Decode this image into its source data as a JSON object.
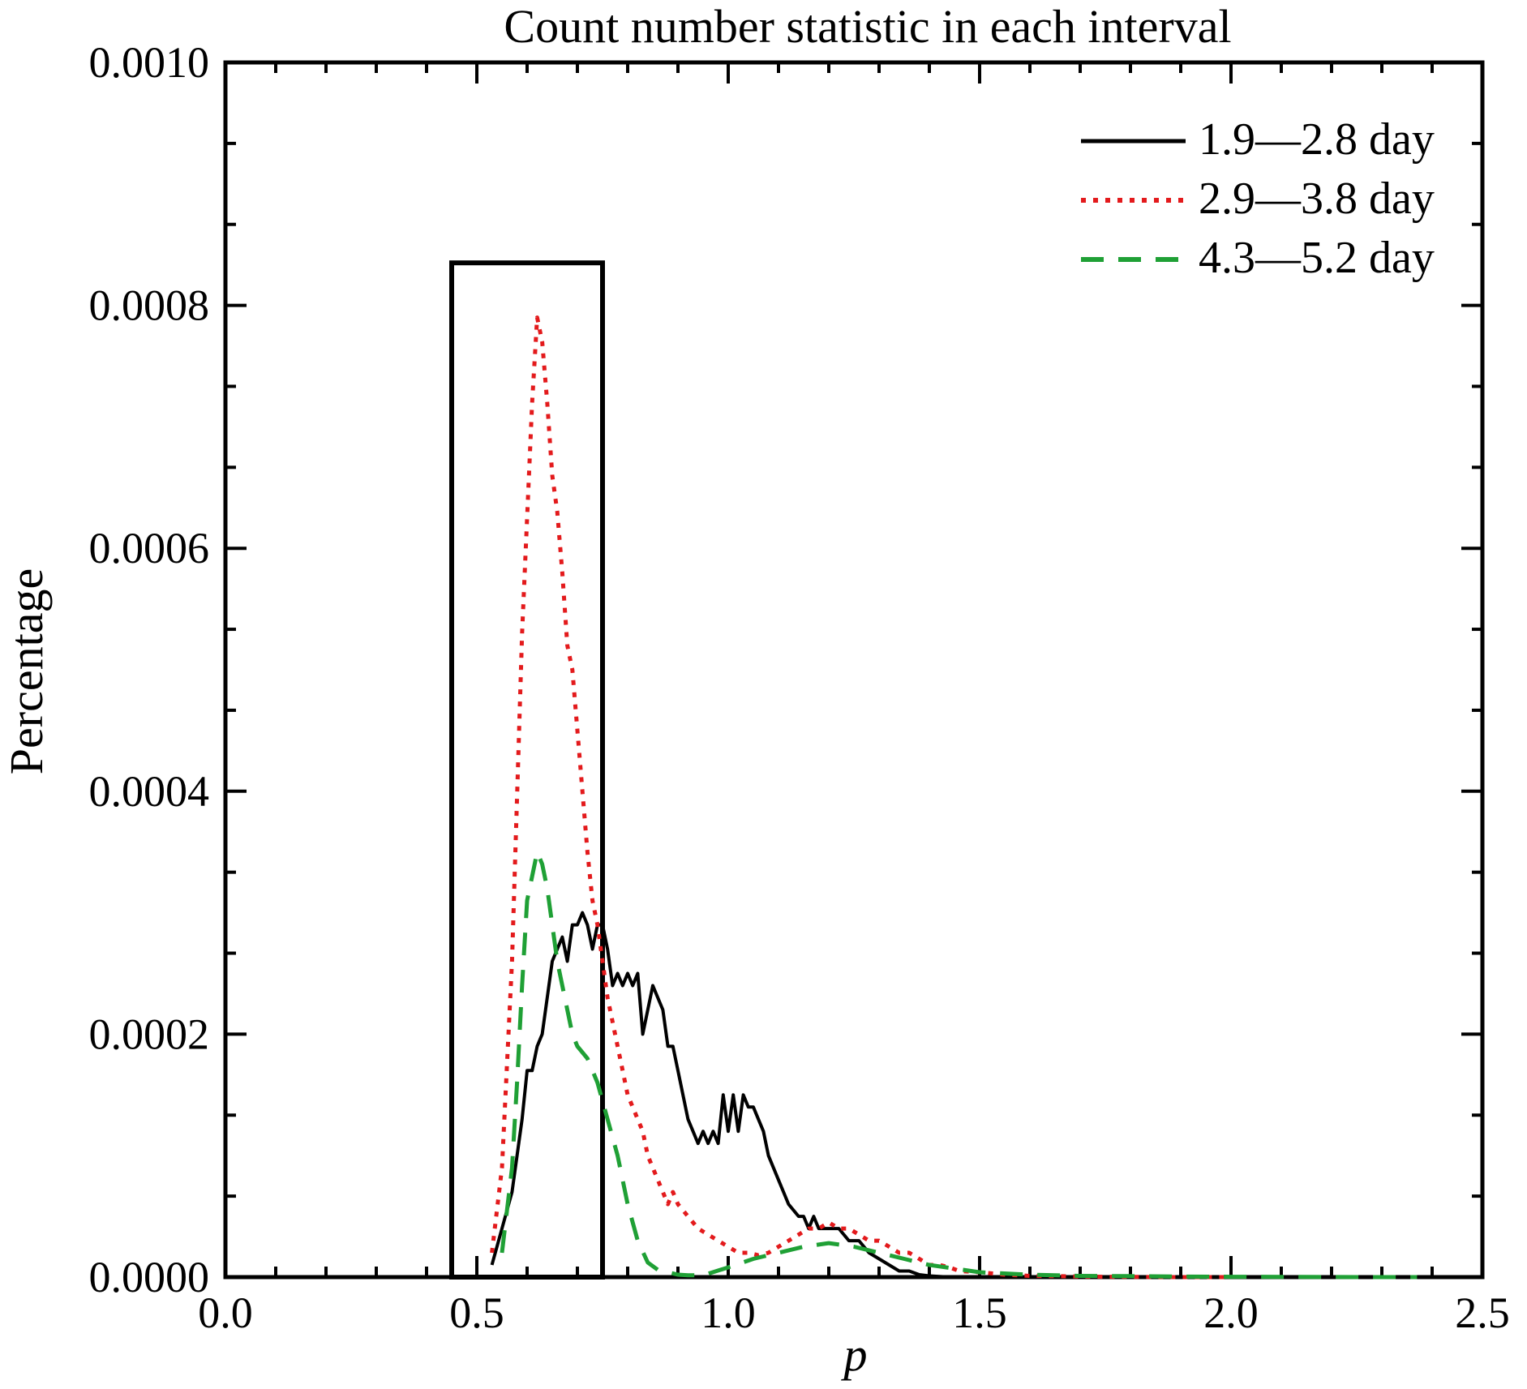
{
  "chart_data": {
    "type": "line",
    "title": "Count number statistic in each interval",
    "xlabel": "p",
    "ylabel": "Percentage",
    "xlim": [
      0.0,
      2.5
    ],
    "ylim": [
      0.0,
      0.001
    ],
    "x_ticks": [
      "0.0",
      "0.5",
      "1.0",
      "1.5",
      "2.0",
      "2.5"
    ],
    "y_ticks": [
      "0.0000",
      "0.0002",
      "0.0004",
      "0.0006",
      "0.0008",
      "0.0010"
    ],
    "grid": false,
    "legend_position": "top-right",
    "highlight_box": {
      "x_range": [
        0.45,
        0.75
      ],
      "y_top": 0.000835
    },
    "series": [
      {
        "name": "1.9—2.8 day",
        "color": "#000000",
        "style": "solid",
        "x": [
          0.53,
          0.55,
          0.57,
          0.58,
          0.59,
          0.6,
          0.61,
          0.62,
          0.63,
          0.64,
          0.65,
          0.66,
          0.67,
          0.68,
          0.69,
          0.7,
          0.71,
          0.72,
          0.73,
          0.74,
          0.75,
          0.76,
          0.77,
          0.78,
          0.79,
          0.8,
          0.81,
          0.82,
          0.83,
          0.84,
          0.85,
          0.86,
          0.87,
          0.88,
          0.89,
          0.9,
          0.91,
          0.92,
          0.93,
          0.94,
          0.95,
          0.96,
          0.97,
          0.98,
          0.99,
          1.0,
          1.01,
          1.02,
          1.03,
          1.04,
          1.05,
          1.06,
          1.07,
          1.08,
          1.09,
          1.1,
          1.11,
          1.12,
          1.13,
          1.14,
          1.15,
          1.16,
          1.17,
          1.18,
          1.19,
          1.2,
          1.22,
          1.24,
          1.26,
          1.28,
          1.3,
          1.32,
          1.34,
          1.36,
          1.38,
          1.4,
          1.42,
          1.44,
          1.46
        ],
        "values": [
          1e-05,
          4e-05,
          7e-05,
          0.0001,
          0.00013,
          0.00017,
          0.00017,
          0.00019,
          0.0002,
          0.00023,
          0.00026,
          0.00027,
          0.00028,
          0.00026,
          0.00029,
          0.00029,
          0.0003,
          0.00029,
          0.00027,
          0.00029,
          0.00029,
          0.00027,
          0.00024,
          0.00025,
          0.00024,
          0.00025,
          0.00024,
          0.00025,
          0.0002,
          0.00022,
          0.00024,
          0.00023,
          0.00022,
          0.00019,
          0.00019,
          0.00017,
          0.00015,
          0.00013,
          0.00012,
          0.00011,
          0.00012,
          0.00011,
          0.00012,
          0.00011,
          0.00015,
          0.00012,
          0.00015,
          0.00012,
          0.00015,
          0.00014,
          0.00014,
          0.00013,
          0.00012,
          0.0001,
          9e-05,
          8e-05,
          7e-05,
          6e-05,
          5.5e-05,
          5e-05,
          5e-05,
          4e-05,
          5e-05,
          4e-05,
          4e-05,
          4e-05,
          4e-05,
          3e-05,
          3e-05,
          2e-05,
          1.5e-05,
          1e-05,
          5e-06,
          5e-06,
          2e-06,
          1e-06,
          5e-07,
          0.0,
          0.0
        ]
      },
      {
        "name": "2.9—3.8 day",
        "color": "#e31a1c",
        "style": "dotted",
        "x": [
          0.53,
          0.55,
          0.57,
          0.59,
          0.61,
          0.62,
          0.63,
          0.64,
          0.65,
          0.66,
          0.67,
          0.68,
          0.69,
          0.7,
          0.71,
          0.72,
          0.73,
          0.74,
          0.75,
          0.76,
          0.77,
          0.78,
          0.79,
          0.8,
          0.81,
          0.82,
          0.83,
          0.84,
          0.85,
          0.86,
          0.87,
          0.88,
          0.89,
          0.9,
          0.92,
          0.94,
          0.96,
          0.98,
          1.0,
          1.02,
          1.04,
          1.06,
          1.08,
          1.1,
          1.12,
          1.14,
          1.16,
          1.18,
          1.2,
          1.22,
          1.24,
          1.26,
          1.28,
          1.3,
          1.32,
          1.34,
          1.36,
          1.38,
          1.4,
          1.42,
          1.44,
          1.46,
          1.5,
          1.55,
          1.6,
          1.65,
          1.7,
          1.75,
          1.8,
          1.85,
          1.9,
          1.95,
          2.0
        ],
        "values": [
          2e-05,
          9e-05,
          0.00026,
          0.00053,
          0.00072,
          0.00079,
          0.00077,
          0.00072,
          0.00066,
          0.00063,
          0.00058,
          0.00052,
          0.0005,
          0.00045,
          0.0004,
          0.00035,
          0.00031,
          0.00029,
          0.00026,
          0.00023,
          0.00021,
          0.00019,
          0.00017,
          0.00015,
          0.00014,
          0.00013,
          0.00012,
          0.0001,
          9e-05,
          8e-05,
          7e-05,
          6e-05,
          7e-05,
          6e-05,
          5e-05,
          4e-05,
          3.5e-05,
          3e-05,
          2.5e-05,
          2e-05,
          2e-05,
          1.8e-05,
          2e-05,
          2.5e-05,
          3e-05,
          3.5e-05,
          4e-05,
          4e-05,
          4.5e-05,
          4e-05,
          4e-05,
          3.5e-05,
          3e-05,
          3e-05,
          2.5e-05,
          2e-05,
          2e-05,
          1.5e-05,
          1e-05,
          1e-05,
          8e-06,
          5e-06,
          4e-06,
          2e-06,
          1e-06,
          8e-07,
          5e-07,
          3e-07,
          2e-07,
          1e-07,
          0.0,
          0.0,
          0.0
        ]
      },
      {
        "name": "4.3—5.2 day",
        "color": "#1fa035",
        "style": "dashed",
        "x": [
          0.55,
          0.57,
          0.58,
          0.59,
          0.6,
          0.61,
          0.62,
          0.63,
          0.64,
          0.65,
          0.66,
          0.67,
          0.68,
          0.69,
          0.7,
          0.72,
          0.74,
          0.76,
          0.78,
          0.8,
          0.82,
          0.84,
          0.86,
          0.88,
          0.9,
          0.92,
          0.95,
          1.0,
          1.05,
          1.1,
          1.15,
          1.2,
          1.25,
          1.3,
          1.35,
          1.4,
          1.45,
          1.5,
          1.6,
          1.7,
          1.8,
          1.9,
          2.0,
          2.1,
          2.2,
          2.3,
          2.37
        ],
        "values": [
          2e-05,
          9e-05,
          0.00016,
          0.00024,
          0.00031,
          0.00033,
          0.00035,
          0.00034,
          0.00032,
          0.00029,
          0.00026,
          0.00024,
          0.00022,
          0.0002,
          0.00019,
          0.00018,
          0.00016,
          0.00013,
          0.0001,
          6e-05,
          3e-05,
          1.2e-05,
          6e-06,
          4e-06,
          2e-06,
          1.5e-06,
          1.5e-06,
          8e-06,
          1.5e-05,
          2e-05,
          2.5e-05,
          2.8e-05,
          2.5e-05,
          2e-05,
          1.5e-05,
          1e-05,
          7e-06,
          4e-06,
          2e-06,
          1e-06,
          8e-07,
          5e-07,
          3e-07,
          2e-07,
          1e-07,
          0.0,
          0.0
        ]
      }
    ]
  }
}
